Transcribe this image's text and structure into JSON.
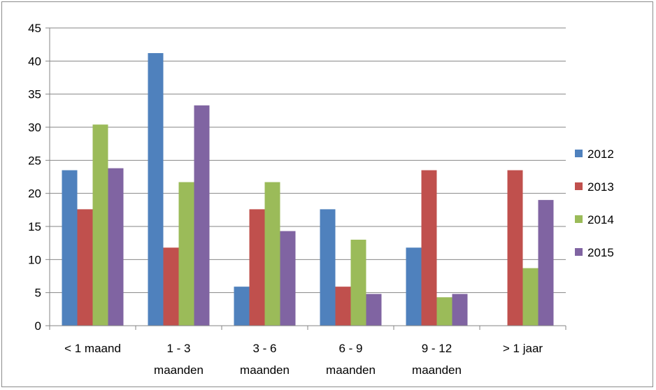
{
  "chart_data": {
    "type": "bar",
    "title": "",
    "xlabel": "",
    "ylabel": "",
    "categories": [
      [
        "< 1 maand"
      ],
      [
        "1 - 3",
        "maanden"
      ],
      [
        "3 - 6",
        "maanden"
      ],
      [
        "6 - 9",
        "maanden"
      ],
      [
        "9 - 12",
        "maanden"
      ],
      [
        "> 1 jaar"
      ]
    ],
    "ylim": [
      0,
      45
    ],
    "yticks": [
      0,
      5,
      10,
      15,
      20,
      25,
      30,
      35,
      40,
      45
    ],
    "grid": true,
    "legend_position": "right",
    "series": [
      {
        "name": "2012",
        "color": "#4f81bd",
        "values": [
          23.5,
          41.2,
          5.9,
          17.6,
          11.8,
          0
        ]
      },
      {
        "name": "2013",
        "color": "#c0504d",
        "values": [
          17.6,
          11.8,
          17.6,
          5.9,
          23.5,
          23.5
        ]
      },
      {
        "name": "2014",
        "color": "#9bbb59",
        "values": [
          30.4,
          21.7,
          21.7,
          13.0,
          4.3,
          8.7
        ]
      },
      {
        "name": "2015",
        "color": "#8064a2",
        "values": [
          23.8,
          33.3,
          14.3,
          4.8,
          4.8,
          19.0
        ]
      }
    ]
  }
}
